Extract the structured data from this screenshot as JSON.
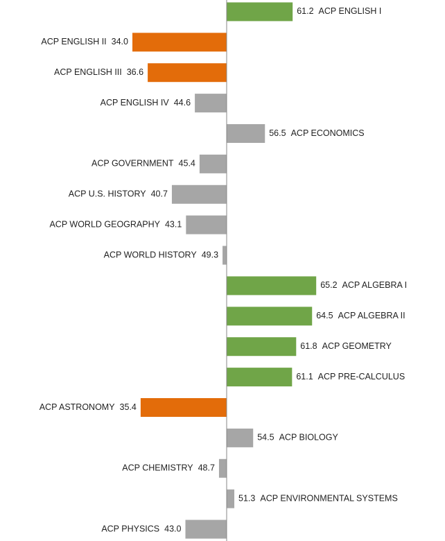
{
  "chart_data": {
    "type": "bar",
    "orientation": "horizontal",
    "categories": [
      "ACP ENGLISH I",
      "ACP ENGLISH II",
      "ACP ENGLISH III",
      "ACP ENGLISH IV",
      "ACP ECONOMICS",
      "ACP GOVERNMENT",
      "ACP U.S. HISTORY",
      "ACP WORLD GEOGRAPHY",
      "ACP WORLD HISTORY",
      "ACP ALGEBRA I",
      "ACP ALGEBRA II",
      "ACP GEOMETRY",
      "ACP PRE-CALCULUS",
      "ACP ASTRONOMY",
      "ACP BIOLOGY",
      "ACP CHEMISTRY",
      "ACP ENVIRONMENTAL SYSTEMS",
      "ACP PHYSICS"
    ],
    "values": [
      61.2,
      34,
      36.6,
      44.6,
      56.5,
      45.4,
      40.7,
      43.1,
      49.3,
      65.2,
      64.5,
      61.8,
      61.1,
      35.4,
      54.5,
      48.7,
      51.3,
      43
    ],
    "value_labels": [
      "61.2",
      "34.0",
      "36.6",
      "44.6",
      "56.5",
      "45.4",
      "40.7",
      "43.1",
      "49.3",
      "65.2",
      "64.5",
      "61.8",
      "61.1",
      "35.4",
      "54.5",
      "48.7",
      "51.3",
      "43.0"
    ],
    "colors": [
      "#70a548",
      "#e36c0a",
      "#e36c0a",
      "#a6a6a6",
      "#a6a6a6",
      "#a6a6a6",
      "#a6a6a6",
      "#a6a6a6",
      "#a6a6a6",
      "#70a548",
      "#70a548",
      "#70a548",
      "#70a548",
      "#e36c0a",
      "#a6a6a6",
      "#a6a6a6",
      "#a6a6a6",
      "#a6a6a6"
    ],
    "baseline": 50,
    "xlim": [
      11.53,
      87.06
    ]
  }
}
